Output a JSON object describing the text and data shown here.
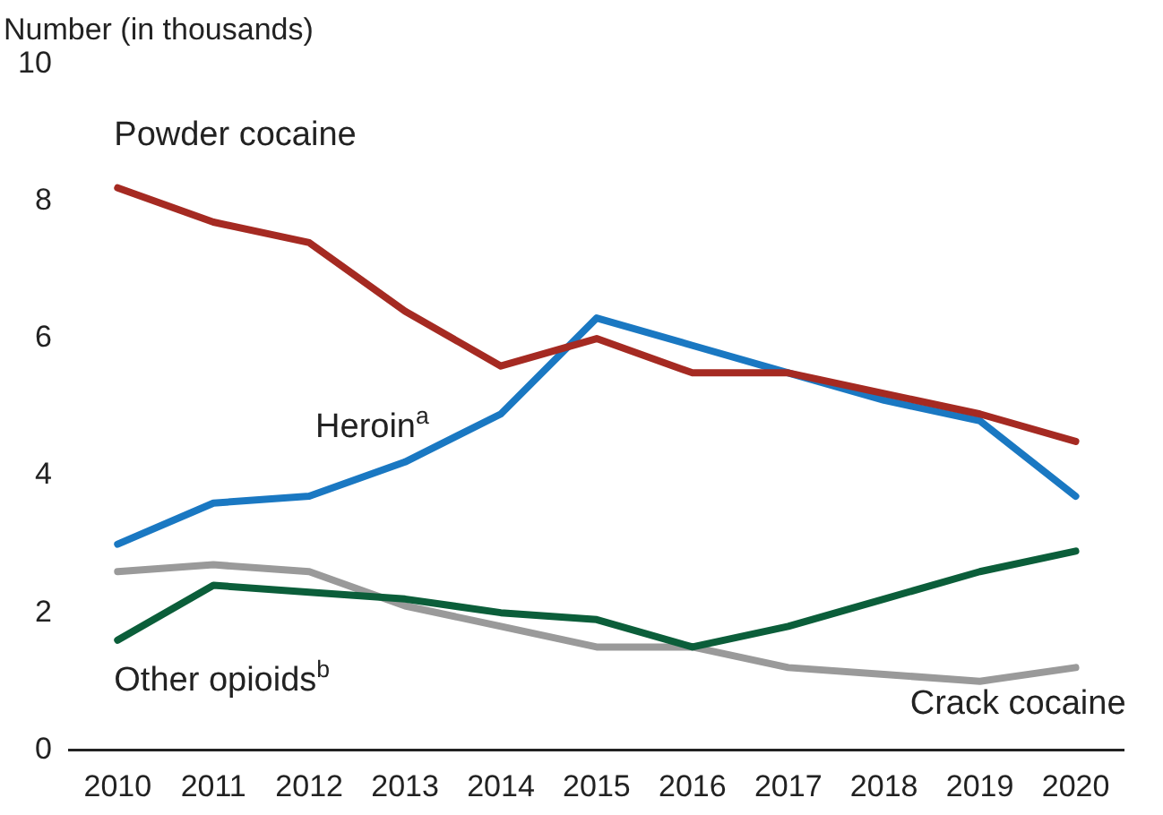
{
  "chart_data": {
    "type": "line",
    "ylabel": "Number (in thousands)",
    "categories": [
      "2010",
      "2011",
      "2012",
      "2013",
      "2014",
      "2015",
      "2016",
      "2017",
      "2018",
      "2019",
      "2020"
    ],
    "series": [
      {
        "name": "Powder cocaine",
        "color": "#a52a22",
        "values": [
          8.2,
          7.7,
          7.4,
          6.4,
          5.6,
          6.0,
          5.5,
          5.5,
          5.2,
          4.9,
          4.5
        ]
      },
      {
        "name": "Heroin$^{a}$",
        "color": "#1a78c2",
        "values": [
          3.0,
          3.6,
          3.7,
          4.2,
          4.9,
          6.3,
          5.9,
          5.5,
          5.1,
          4.8,
          3.7
        ]
      },
      {
        "name": "Other opioids$^{b}$",
        "color": "#0b5e3a",
        "values": [
          1.6,
          2.4,
          2.3,
          2.2,
          2.0,
          1.9,
          1.5,
          1.8,
          2.2,
          2.6,
          2.9
        ]
      },
      {
        "name": "Crack cocaine",
        "color": "#9a9a9a",
        "values": [
          2.6,
          2.7,
          2.6,
          2.1,
          1.8,
          1.5,
          1.5,
          1.2,
          1.1,
          1.0,
          1.2
        ]
      }
    ],
    "ylim": [
      0,
      10
    ],
    "yticks": [
      0,
      2,
      4,
      6,
      8,
      10
    ],
    "grid": false,
    "legend": false
  }
}
